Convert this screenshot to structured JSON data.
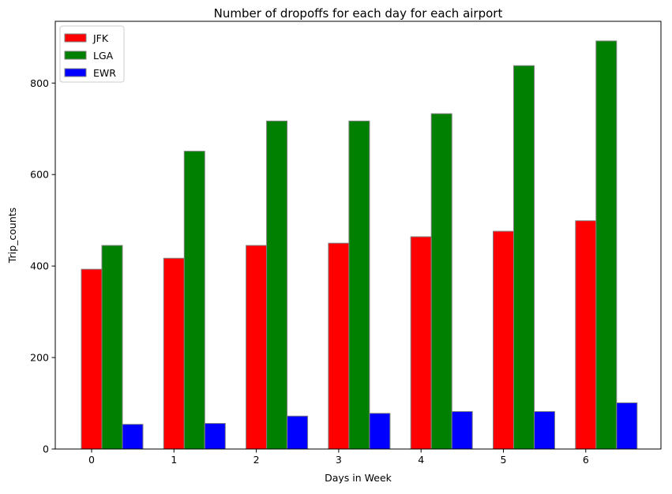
{
  "chart_data": {
    "type": "bar",
    "title": "Number of dropoffs for each day for each airport",
    "xlabel": "Days in Week",
    "ylabel": "Trip_counts",
    "categories": [
      "0",
      "1",
      "2",
      "3",
      "4",
      "5",
      "6"
    ],
    "yticks": [
      "0",
      "200",
      "400",
      "600",
      "800"
    ],
    "ylim": [
      0,
      935
    ],
    "grid": false,
    "legend_position": "top-left",
    "series": [
      {
        "name": "JFK",
        "color": "#ff0000",
        "values": [
          393,
          417,
          445,
          450,
          464,
          476,
          499
        ]
      },
      {
        "name": "LGA",
        "color": "#008000",
        "values": [
          445,
          651,
          717,
          717,
          733,
          838,
          892
        ]
      },
      {
        "name": "EWR",
        "color": "#0000ff",
        "values": [
          54,
          56,
          72,
          78,
          82,
          82,
          101
        ]
      }
    ]
  }
}
